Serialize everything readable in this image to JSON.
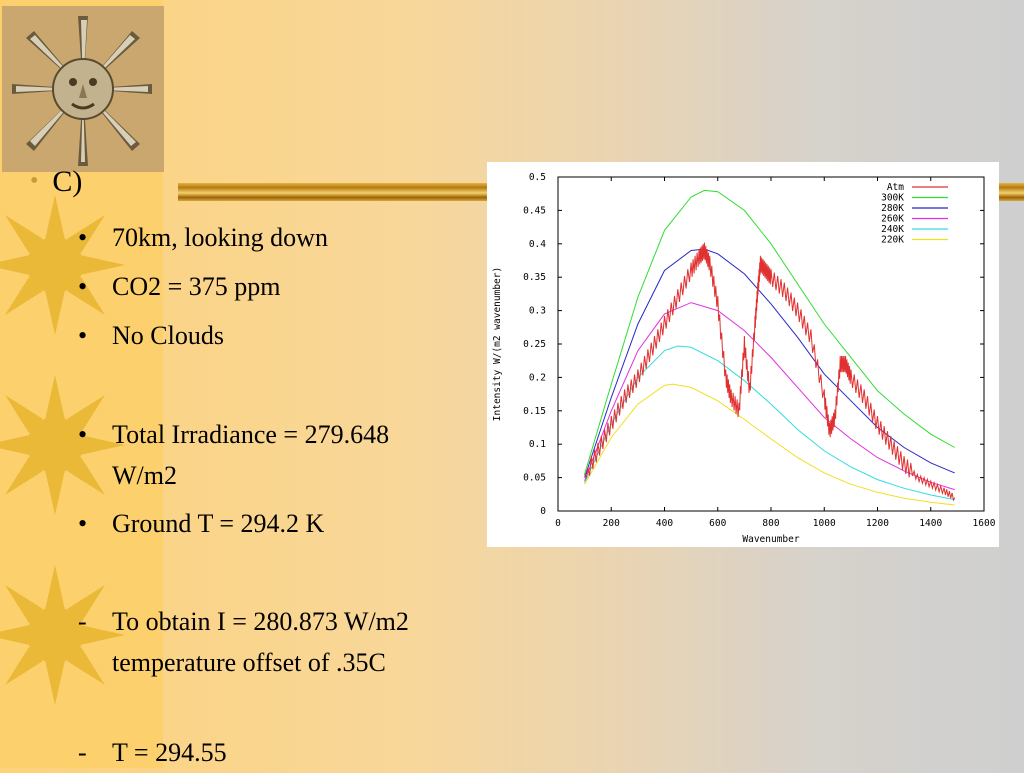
{
  "slide": {
    "heading": "C)",
    "bullets": [
      {
        "marker": "•",
        "text": " 70km, looking down"
      },
      {
        "marker": "•",
        "text": "CO2 = 375 ppm"
      },
      {
        "marker": "•",
        "text": "No Clouds"
      },
      {
        "marker": "•",
        "text": "Total Irradiance = 279.648 W/m2"
      },
      {
        "marker": "•",
        "text": "Ground T = 294.2 K"
      },
      {
        "marker": "-",
        "text": "To obtain I = 280.873 W/m2 temperature offset of .35C"
      },
      {
        "marker": "-",
        "text": "T = 294.55"
      }
    ]
  },
  "colors": {
    "atm": "#e03030",
    "k300": "#30dd30",
    "k280": "#2828c8",
    "k260": "#e030e0",
    "k240": "#30dde0",
    "k220": "#f0e020"
  },
  "chart_data": {
    "type": "line",
    "xlabel": "Wavenumber",
    "ylabel": "Intensity W/(m2 wavenumber)",
    "xlim": [
      0,
      1600
    ],
    "ylim": [
      0,
      0.5
    ],
    "xticks": [
      "0",
      "200",
      "400",
      "600",
      "800",
      "1000",
      "1200",
      "1400",
      "1600"
    ],
    "yticks": [
      "0",
      "0.05",
      "0.1",
      "0.15",
      "0.2",
      "0.25",
      "0.3",
      "0.35",
      "0.4",
      "0.45",
      "0.5"
    ],
    "legend_position": "top-right",
    "series": [
      {
        "name": "Atm",
        "color": "#e03030",
        "x": [
          100,
          150,
          200,
          250,
          300,
          350,
          400,
          450,
          500,
          530,
          550,
          570,
          600,
          630,
          650,
          680,
          700,
          720,
          740,
          750,
          760,
          780,
          800,
          850,
          900,
          950,
          1000,
          1020,
          1040,
          1060,
          1080,
          1100,
          1150,
          1200,
          1250,
          1300,
          1350,
          1400,
          1450,
          1490
        ],
        "y": [
          0.05,
          0.09,
          0.13,
          0.17,
          0.2,
          0.24,
          0.28,
          0.32,
          0.36,
          0.38,
          0.39,
          0.37,
          0.31,
          0.2,
          0.17,
          0.15,
          0.25,
          0.18,
          0.28,
          0.33,
          0.37,
          0.36,
          0.35,
          0.33,
          0.3,
          0.26,
          0.17,
          0.12,
          0.14,
          0.22,
          0.22,
          0.2,
          0.17,
          0.13,
          0.1,
          0.07,
          0.05,
          0.04,
          0.03,
          0.02
        ]
      },
      {
        "name": "300K",
        "color": "#30dd30",
        "x": [
          100,
          200,
          300,
          400,
          500,
          550,
          600,
          700,
          800,
          900,
          1000,
          1100,
          1200,
          1300,
          1400,
          1490
        ],
        "y": [
          0.055,
          0.19,
          0.32,
          0.42,
          0.47,
          0.48,
          0.478,
          0.45,
          0.4,
          0.34,
          0.28,
          0.23,
          0.18,
          0.145,
          0.115,
          0.095
        ]
      },
      {
        "name": "280K",
        "color": "#2828c8",
        "x": [
          100,
          200,
          300,
          400,
          500,
          550,
          600,
          700,
          800,
          900,
          1000,
          1100,
          1200,
          1300,
          1400,
          1490
        ],
        "y": [
          0.05,
          0.17,
          0.28,
          0.36,
          0.39,
          0.392,
          0.385,
          0.355,
          0.31,
          0.26,
          0.205,
          0.165,
          0.125,
          0.095,
          0.072,
          0.057
        ]
      },
      {
        "name": "260K",
        "color": "#e030e0",
        "x": [
          100,
          200,
          300,
          400,
          500,
          600,
          700,
          800,
          900,
          1000,
          1100,
          1200,
          1300,
          1400,
          1490
        ],
        "y": [
          0.045,
          0.15,
          0.24,
          0.295,
          0.312,
          0.3,
          0.27,
          0.23,
          0.185,
          0.14,
          0.108,
          0.08,
          0.06,
          0.043,
          0.032
        ]
      },
      {
        "name": "240K",
        "color": "#30dde0",
        "x": [
          100,
          200,
          300,
          400,
          450,
          500,
          600,
          700,
          800,
          900,
          1000,
          1100,
          1200,
          1300,
          1400,
          1490
        ],
        "y": [
          0.042,
          0.13,
          0.2,
          0.24,
          0.247,
          0.245,
          0.225,
          0.195,
          0.16,
          0.122,
          0.09,
          0.066,
          0.047,
          0.034,
          0.024,
          0.017
        ]
      },
      {
        "name": "220K",
        "color": "#f0e020",
        "x": [
          100,
          200,
          300,
          400,
          430,
          500,
          600,
          700,
          800,
          900,
          1000,
          1100,
          1200,
          1300,
          1400,
          1490
        ],
        "y": [
          0.04,
          0.11,
          0.16,
          0.188,
          0.19,
          0.185,
          0.165,
          0.137,
          0.108,
          0.08,
          0.057,
          0.04,
          0.028,
          0.019,
          0.013,
          0.009
        ]
      }
    ]
  }
}
